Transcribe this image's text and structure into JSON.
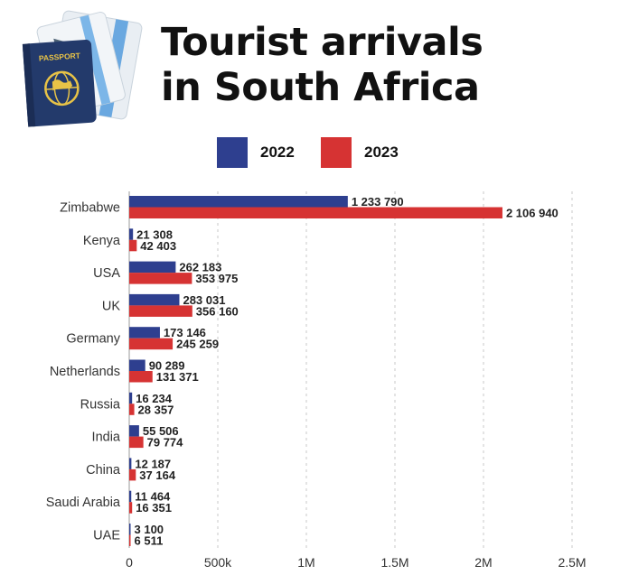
{
  "icon": {
    "name": "passport-and-tickets-icon",
    "passport_text": "PASSPORT"
  },
  "title_lines": [
    "Tourist arrivals",
    "in South Africa"
  ],
  "legend": [
    {
      "label": "2022",
      "color": "#2e3f8f"
    },
    {
      "label": "2023",
      "color": "#d63333"
    }
  ],
  "chart_data": {
    "type": "bar",
    "orientation": "horizontal",
    "title": "Tourist arrivals in South Africa",
    "xlabel": "",
    "ylabel": "",
    "xlim": [
      0,
      2500000
    ],
    "x_ticks": [
      0,
      500000,
      1000000,
      1500000,
      2000000,
      2500000
    ],
    "x_tick_labels": [
      "0",
      "500k",
      "1M",
      "1.5M",
      "2M",
      "2.5M"
    ],
    "grid": true,
    "legend_position": "top",
    "categories": [
      "Zimbabwe",
      "Kenya",
      "USA",
      "UK",
      "Germany",
      "Netherlands",
      "Russia",
      "India",
      "China",
      "Saudi Arabia",
      "UAE"
    ],
    "series": [
      {
        "name": "2022",
        "color": "#2e3f8f",
        "values": [
          1233790,
          21308,
          262183,
          283031,
          173146,
          90289,
          16234,
          55506,
          12187,
          11464,
          3100
        ],
        "labels": [
          "1 233 790",
          "21 308",
          "262 183",
          "283 031",
          "173 146",
          "90 289",
          "16 234",
          "55 506",
          "12 187",
          "11 464",
          "3 100"
        ]
      },
      {
        "name": "2023",
        "color": "#d63333",
        "values": [
          2106940,
          42403,
          353975,
          356160,
          245259,
          131371,
          28357,
          79774,
          37164,
          16351,
          6511
        ],
        "labels": [
          "2 106 940",
          "42 403",
          "353 975",
          "356 160",
          "245 259",
          "131 371",
          "28 357",
          "79 774",
          "37 164",
          "16 351",
          "6 511"
        ]
      }
    ]
  }
}
